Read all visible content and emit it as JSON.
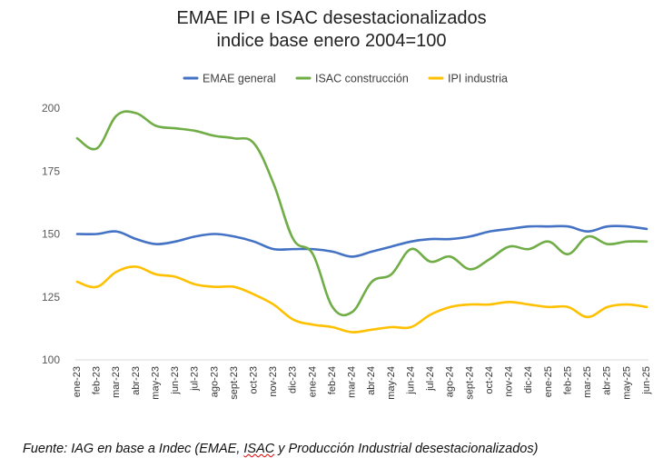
{
  "chart_data": {
    "type": "line",
    "title": [
      "EMAE IPI e ISAC desestacionalizados",
      "indice base enero 2004=100"
    ],
    "xlabel": "",
    "ylabel": "",
    "ylim": [
      100,
      200
    ],
    "yticks": [
      100,
      125,
      150,
      175,
      200
    ],
    "grid": false,
    "legend_position": "top",
    "categories": [
      "ene-23",
      "feb-23",
      "mar-23",
      "abr-23",
      "may-23",
      "jun-23",
      "jul-23",
      "ago-23",
      "sept-23",
      "oct-23",
      "nov-23",
      "dic-23",
      "ene-24",
      "feb-24",
      "mar-24",
      "abr-24",
      "may-24",
      "jun-24",
      "jul-24",
      "ago-24",
      "sept-24",
      "oct-24",
      "nov-24",
      "dic-24",
      "ene-25",
      "feb-25",
      "mar-25",
      "abr-25",
      "may-25",
      "jun-25"
    ],
    "series": [
      {
        "name": "EMAE general",
        "color": "#4472C4",
        "values": [
          150,
          150,
          151,
          148,
          146,
          147,
          149,
          150,
          149,
          147,
          144,
          144,
          144,
          143,
          141,
          143,
          145,
          147,
          148,
          148,
          149,
          151,
          152,
          153,
          153,
          153,
          151,
          153,
          153,
          152
        ]
      },
      {
        "name": "ISAC construcción",
        "color": "#70AD47",
        "values": [
          188,
          184,
          197,
          198,
          193,
          192,
          191,
          189,
          188,
          186,
          170,
          148,
          142,
          121,
          119,
          131,
          134,
          144,
          139,
          141,
          136,
          140,
          145,
          144,
          147,
          142,
          149,
          146,
          147,
          147
        ]
      },
      {
        "name": "IPI industria",
        "color": "#FFC000",
        "values": [
          131,
          129,
          135,
          137,
          134,
          133,
          130,
          129,
          129,
          126,
          122,
          116,
          114,
          113,
          111,
          112,
          113,
          113,
          118,
          121,
          122,
          122,
          123,
          122,
          121,
          121,
          117,
          121,
          122,
          121
        ]
      }
    ]
  },
  "source_note": {
    "before": "Fuente: IAG en base a Indec (EMAE, ",
    "underlined": "ISAC",
    "after": " y Producción Industrial desestacionalizados)"
  }
}
